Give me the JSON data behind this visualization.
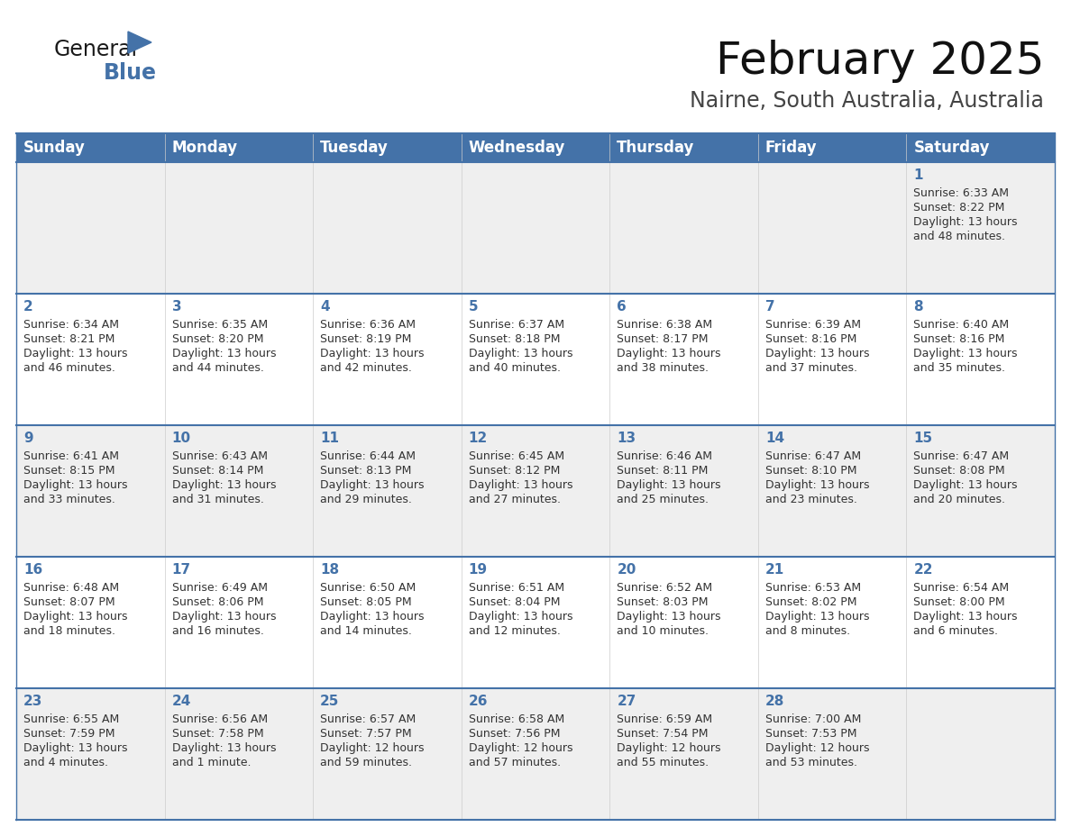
{
  "title": "February 2025",
  "subtitle": "Nairne, South Australia, Australia",
  "header_color": "#4472A8",
  "header_text_color": "#FFFFFF",
  "cell_bg_odd": "#EFEFEF",
  "cell_bg_even": "#FFFFFF",
  "day_number_color": "#4472A8",
  "text_color": "#333333",
  "line_color": "#4472A8",
  "days_of_week": [
    "Sunday",
    "Monday",
    "Tuesday",
    "Wednesday",
    "Thursday",
    "Friday",
    "Saturday"
  ],
  "weeks": [
    [
      {
        "day": "",
        "info": ""
      },
      {
        "day": "",
        "info": ""
      },
      {
        "day": "",
        "info": ""
      },
      {
        "day": "",
        "info": ""
      },
      {
        "day": "",
        "info": ""
      },
      {
        "day": "",
        "info": ""
      },
      {
        "day": "1",
        "info": "Sunrise: 6:33 AM\nSunset: 8:22 PM\nDaylight: 13 hours\nand 48 minutes."
      }
    ],
    [
      {
        "day": "2",
        "info": "Sunrise: 6:34 AM\nSunset: 8:21 PM\nDaylight: 13 hours\nand 46 minutes."
      },
      {
        "day": "3",
        "info": "Sunrise: 6:35 AM\nSunset: 8:20 PM\nDaylight: 13 hours\nand 44 minutes."
      },
      {
        "day": "4",
        "info": "Sunrise: 6:36 AM\nSunset: 8:19 PM\nDaylight: 13 hours\nand 42 minutes."
      },
      {
        "day": "5",
        "info": "Sunrise: 6:37 AM\nSunset: 8:18 PM\nDaylight: 13 hours\nand 40 minutes."
      },
      {
        "day": "6",
        "info": "Sunrise: 6:38 AM\nSunset: 8:17 PM\nDaylight: 13 hours\nand 38 minutes."
      },
      {
        "day": "7",
        "info": "Sunrise: 6:39 AM\nSunset: 8:16 PM\nDaylight: 13 hours\nand 37 minutes."
      },
      {
        "day": "8",
        "info": "Sunrise: 6:40 AM\nSunset: 8:16 PM\nDaylight: 13 hours\nand 35 minutes."
      }
    ],
    [
      {
        "day": "9",
        "info": "Sunrise: 6:41 AM\nSunset: 8:15 PM\nDaylight: 13 hours\nand 33 minutes."
      },
      {
        "day": "10",
        "info": "Sunrise: 6:43 AM\nSunset: 8:14 PM\nDaylight: 13 hours\nand 31 minutes."
      },
      {
        "day": "11",
        "info": "Sunrise: 6:44 AM\nSunset: 8:13 PM\nDaylight: 13 hours\nand 29 minutes."
      },
      {
        "day": "12",
        "info": "Sunrise: 6:45 AM\nSunset: 8:12 PM\nDaylight: 13 hours\nand 27 minutes."
      },
      {
        "day": "13",
        "info": "Sunrise: 6:46 AM\nSunset: 8:11 PM\nDaylight: 13 hours\nand 25 minutes."
      },
      {
        "day": "14",
        "info": "Sunrise: 6:47 AM\nSunset: 8:10 PM\nDaylight: 13 hours\nand 23 minutes."
      },
      {
        "day": "15",
        "info": "Sunrise: 6:47 AM\nSunset: 8:08 PM\nDaylight: 13 hours\nand 20 minutes."
      }
    ],
    [
      {
        "day": "16",
        "info": "Sunrise: 6:48 AM\nSunset: 8:07 PM\nDaylight: 13 hours\nand 18 minutes."
      },
      {
        "day": "17",
        "info": "Sunrise: 6:49 AM\nSunset: 8:06 PM\nDaylight: 13 hours\nand 16 minutes."
      },
      {
        "day": "18",
        "info": "Sunrise: 6:50 AM\nSunset: 8:05 PM\nDaylight: 13 hours\nand 14 minutes."
      },
      {
        "day": "19",
        "info": "Sunrise: 6:51 AM\nSunset: 8:04 PM\nDaylight: 13 hours\nand 12 minutes."
      },
      {
        "day": "20",
        "info": "Sunrise: 6:52 AM\nSunset: 8:03 PM\nDaylight: 13 hours\nand 10 minutes."
      },
      {
        "day": "21",
        "info": "Sunrise: 6:53 AM\nSunset: 8:02 PM\nDaylight: 13 hours\nand 8 minutes."
      },
      {
        "day": "22",
        "info": "Sunrise: 6:54 AM\nSunset: 8:00 PM\nDaylight: 13 hours\nand 6 minutes."
      }
    ],
    [
      {
        "day": "23",
        "info": "Sunrise: 6:55 AM\nSunset: 7:59 PM\nDaylight: 13 hours\nand 4 minutes."
      },
      {
        "day": "24",
        "info": "Sunrise: 6:56 AM\nSunset: 7:58 PM\nDaylight: 13 hours\nand 1 minute."
      },
      {
        "day": "25",
        "info": "Sunrise: 6:57 AM\nSunset: 7:57 PM\nDaylight: 12 hours\nand 59 minutes."
      },
      {
        "day": "26",
        "info": "Sunrise: 6:58 AM\nSunset: 7:56 PM\nDaylight: 12 hours\nand 57 minutes."
      },
      {
        "day": "27",
        "info": "Sunrise: 6:59 AM\nSunset: 7:54 PM\nDaylight: 12 hours\nand 55 minutes."
      },
      {
        "day": "28",
        "info": "Sunrise: 7:00 AM\nSunset: 7:53 PM\nDaylight: 12 hours\nand 53 minutes."
      },
      {
        "day": "",
        "info": ""
      }
    ]
  ],
  "logo_color_general": "#1a1a1a",
  "logo_color_blue": "#4472A8",
  "logo_triangle_color": "#4472A8",
  "title_fontsize": 36,
  "subtitle_fontsize": 17,
  "header_fontsize": 12,
  "day_num_fontsize": 11,
  "info_fontsize": 9
}
